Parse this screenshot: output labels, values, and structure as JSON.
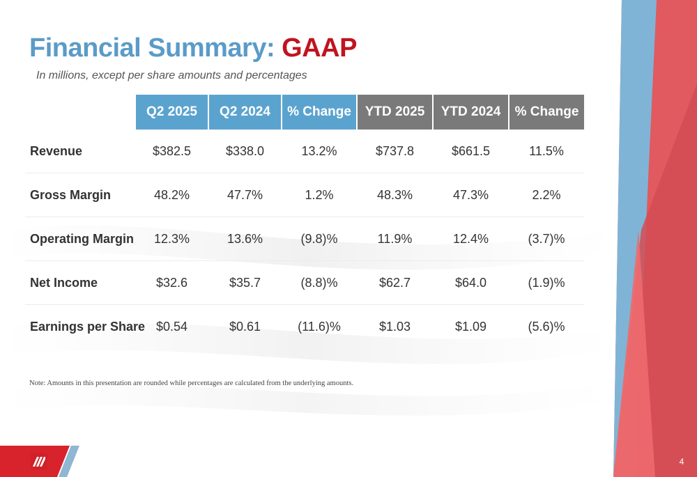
{
  "title": {
    "main": "Financial Summary: ",
    "accent": "GAAP"
  },
  "subtitle": "In millions, except per share amounts and percentages",
  "table": {
    "headers": [
      "Q2 2025",
      "Q2 2024",
      "% Change",
      "YTD 2025",
      "YTD 2024",
      "% Change"
    ],
    "rows": [
      {
        "label": "Revenue",
        "values": [
          "$382.5",
          "$338.0",
          "13.2%",
          "$737.8",
          "$661.5",
          "11.5%"
        ]
      },
      {
        "label": "Gross Margin",
        "values": [
          "48.2%",
          "47.7%",
          "1.2%",
          "48.3%",
          "47.3%",
          "2.2%"
        ]
      },
      {
        "label": "Operating Margin",
        "values": [
          "12.3%",
          "13.6%",
          "(9.8)%",
          "11.9%",
          "12.4%",
          "(3.7)%"
        ]
      },
      {
        "label": "Net Income",
        "values": [
          "$32.6",
          "$35.7",
          "(8.8)%",
          "$62.7",
          "$64.0",
          "(1.9)%"
        ]
      },
      {
        "label": "Earnings per Share",
        "values": [
          "$0.54",
          "$0.61",
          "(11.6)%",
          "$1.03",
          "$1.09",
          "(5.6)%"
        ]
      }
    ]
  },
  "note": "Note: Amounts in this presentation are rounded while percentages are calculated from the underlying amounts.",
  "page_number": "4",
  "colors": {
    "title_blue": "#5a9bc8",
    "title_red": "#c0141e",
    "header_quarter": "#5ba3cf",
    "header_ytd": "#7a7a7a",
    "accent_red": "#e05a60",
    "accent_blue": "#7fb4d6"
  },
  "icons": {
    "logo": "company-logo-icon"
  }
}
